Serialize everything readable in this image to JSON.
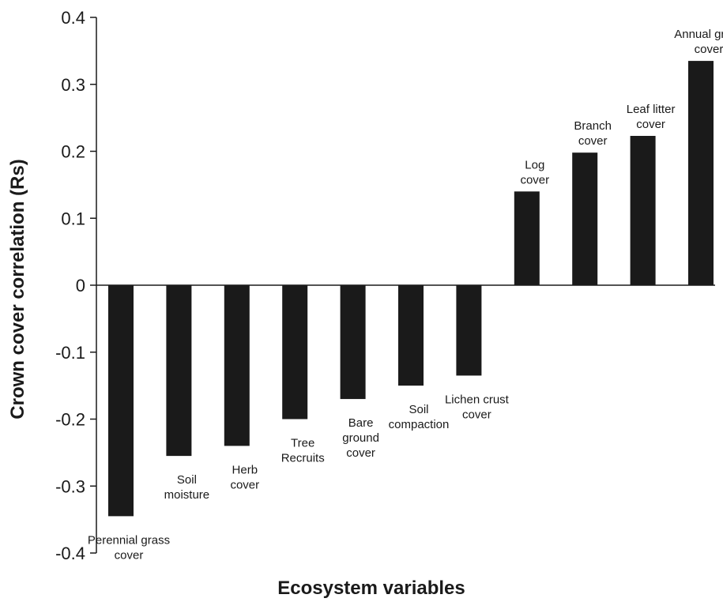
{
  "chart_data": {
    "type": "bar",
    "xlabel": "Ecosystem variables",
    "ylabel": "Crown cover correlation (Rs)",
    "ylim": [
      -0.4,
      0.4
    ],
    "yticks": [
      0.4,
      0.3,
      0.2,
      0.1,
      0,
      -0.1,
      -0.2,
      -0.3,
      -0.4
    ],
    "ytick_labels": [
      "0.4",
      "0.3",
      "0.2",
      "0.1",
      "0",
      "-0.1",
      "-0.2",
      "-0.3",
      "-0.4"
    ],
    "grid": false,
    "legend": "none",
    "bar_color": "#1a1a1a",
    "categories": [
      [
        "Perennial grass",
        "cover"
      ],
      [
        "Soil",
        "moisture"
      ],
      [
        "Herb",
        "cover"
      ],
      [
        "Tree",
        "Recruits"
      ],
      [
        "Bare",
        "ground",
        "cover"
      ],
      [
        "Soil",
        "compaction"
      ],
      [
        "Lichen crust",
        "cover"
      ],
      [
        "Log",
        "cover"
      ],
      [
        "Branch",
        "cover"
      ],
      [
        "Leaf litter",
        "cover"
      ],
      [
        "Annual grass",
        "cover"
      ]
    ],
    "values": [
      -0.345,
      -0.255,
      -0.24,
      -0.2,
      -0.17,
      -0.15,
      -0.135,
      0.14,
      0.198,
      0.223,
      0.335
    ]
  }
}
